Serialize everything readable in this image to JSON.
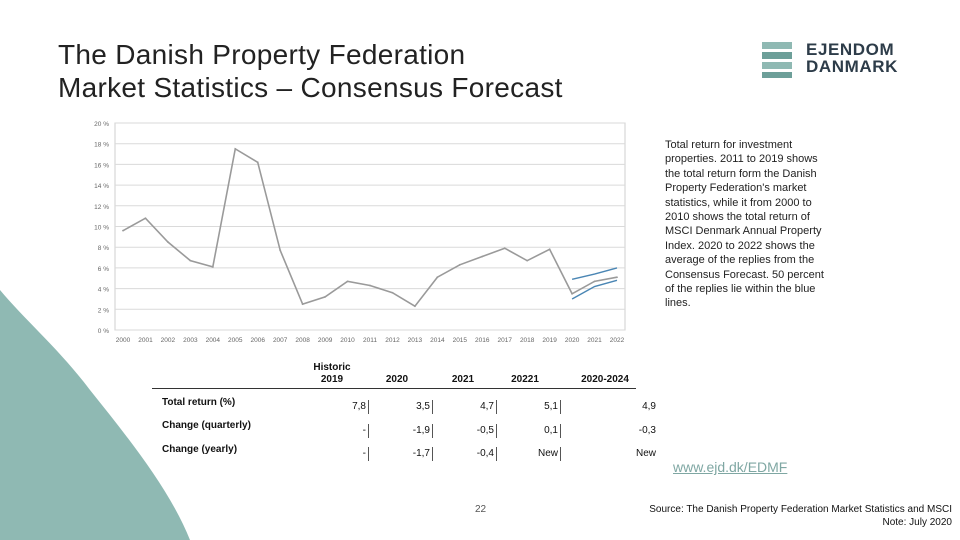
{
  "slide": {
    "title_line1": "The Danish Property Federation",
    "title_line2": "Market Statistics – Consensus Forecast",
    "logo_line1": "EJENDOM",
    "logo_line2": "DANMARK",
    "side_note": "Total return for investment properties. 2011 to 2019 shows the total return form the Danish Property Federation's market statistics, while it from 2000 to 2010 shows the total return of MSCI Denmark Annual Property Index. 2020 to 2022 shows the average of the replies from the Consensus Forecast. 50 percent of the replies lie within the blue lines.",
    "link": "www.ejd.dk/EDMF",
    "page_number": "22",
    "source_line1": "Source: The Danish Property Federation Market Statistics and MSCI",
    "source_line2": "Note: July 2020",
    "colors": {
      "teal": "#8fb9b3",
      "line": "#888888",
      "band": "#4a86b4",
      "logo": "#2d3c49"
    }
  },
  "table": {
    "headers": [
      "Historic 2019",
      "2020",
      "2021",
      "20221",
      "2020-2024"
    ],
    "rows": [
      {
        "label": "Total return (%)",
        "values": [
          "7,8",
          "3,5",
          "4,7",
          "5,1",
          "4,9"
        ]
      },
      {
        "label": "Change (quarterly)",
        "values": [
          "-",
          "-1,9",
          "-0,5",
          "0,1",
          "-0,3"
        ]
      },
      {
        "label": "Change (yearly)",
        "values": [
          "-",
          "-1,7",
          "-0,4",
          "New",
          "New"
        ]
      }
    ]
  },
  "chart_data": {
    "type": "line",
    "x": [
      "2000",
      "2001",
      "2002",
      "2003",
      "2004",
      "2005",
      "2006",
      "2007",
      "2008",
      "2009",
      "2010",
      "2011",
      "2012",
      "2013",
      "2014",
      "2015",
      "2016",
      "2017",
      "2018",
      "2019",
      "2020",
      "2021",
      "2022"
    ],
    "y_ticks": [
      "0 %",
      "2 %",
      "4 %",
      "6 %",
      "8 %",
      "10 %",
      "12 %",
      "14 %",
      "16 %",
      "18 %",
      "20 %"
    ],
    "ylim": [
      0,
      20
    ],
    "grid": true,
    "series": [
      {
        "values": [
          9.6,
          10.8,
          8.5,
          6.7,
          6.1,
          17.5,
          16.2,
          7.7,
          2.5,
          3.2,
          4.7,
          4.3,
          3.6,
          2.3,
          5.1,
          6.3,
          7.1,
          7.9,
          6.7,
          7.8,
          3.5,
          4.7,
          5.1
        ]
      }
    ],
    "band_upper": [
      {
        "x": "2020",
        "y": 4.9
      },
      {
        "x": "2021",
        "y": 5.4
      },
      {
        "x": "2022",
        "y": 6.0
      }
    ],
    "band_lower": [
      {
        "x": "2020",
        "y": 3.0
      },
      {
        "x": "2021",
        "y": 4.2
      },
      {
        "x": "2022",
        "y": 4.8
      }
    ]
  }
}
